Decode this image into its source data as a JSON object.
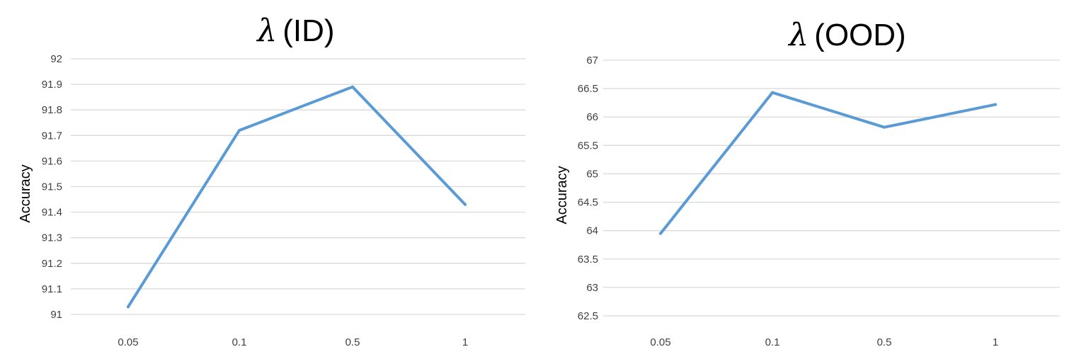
{
  "chart_data": [
    {
      "type": "line",
      "title": "λ (ID)",
      "title_symbol": "λ",
      "title_text": "(ID)",
      "ylabel": "Accuracy",
      "xlabel": "",
      "categories": [
        "0.05",
        "0.1",
        "0.5",
        "1"
      ],
      "yticks": [
        "91",
        "91.1",
        "91.2",
        "91.3",
        "91.4",
        "91.5",
        "91.6",
        "91.7",
        "91.8",
        "91.9",
        "92"
      ],
      "ylim": [
        91,
        92
      ],
      "grid": true,
      "series": [
        {
          "values": [
            91.03,
            91.72,
            91.89,
            91.43
          ],
          "color": "#5b9bd5"
        }
      ]
    },
    {
      "type": "line",
      "title": "λ (OOD)",
      "title_symbol": "λ",
      "title_text": "(OOD)",
      "ylabel": "Accuracy",
      "xlabel": "",
      "categories": [
        "0.05",
        "0.1",
        "0.5",
        "1"
      ],
      "yticks": [
        "62.5",
        "63",
        "63.5",
        "64",
        "64.5",
        "65",
        "65.5",
        "66",
        "66.5",
        "67"
      ],
      "ylim": [
        62.5,
        67
      ],
      "grid": true,
      "series": [
        {
          "values": [
            63.95,
            66.43,
            65.82,
            66.22
          ],
          "color": "#5b9bd5"
        }
      ]
    }
  ]
}
